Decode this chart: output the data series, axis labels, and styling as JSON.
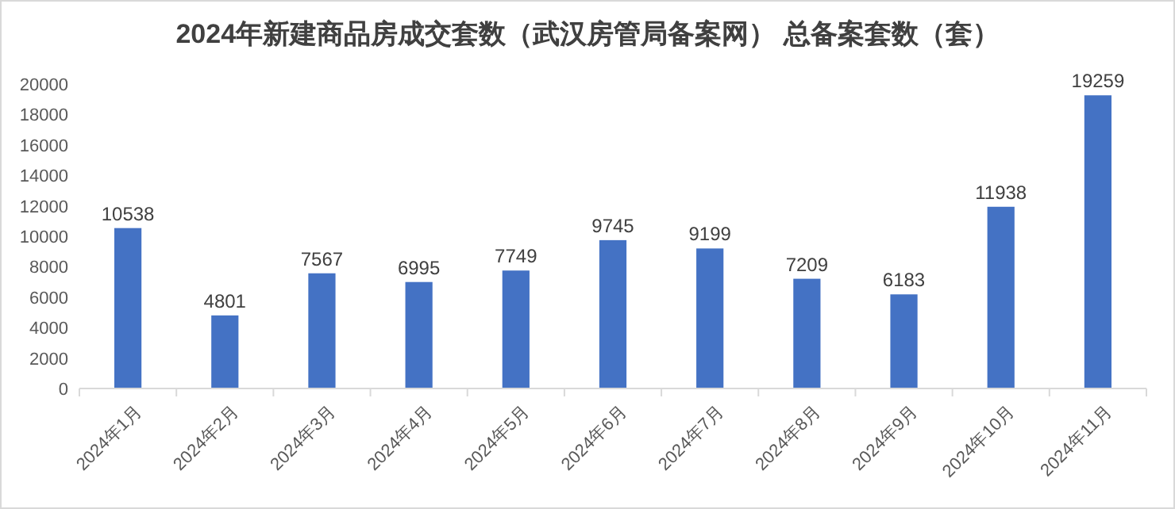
{
  "chart_data": {
    "type": "bar",
    "title": "2024年新建商品房成交套数（武汉房管局备案网） 总备案套数（套）",
    "categories": [
      "2024年1月",
      "2024年2月",
      "2024年3月",
      "2024年4月",
      "2024年5月",
      "2024年6月",
      "2024年7月",
      "2024年8月",
      "2024年9月",
      "2024年10月",
      "2024年11月"
    ],
    "values": [
      10538,
      4801,
      7567,
      6995,
      7749,
      9745,
      9199,
      7209,
      6183,
      11938,
      19259
    ],
    "color": "#4472c4",
    "ylim": [
      0,
      20000
    ],
    "yticks": [
      0,
      2000,
      4000,
      6000,
      8000,
      10000,
      12000,
      14000,
      16000,
      18000,
      20000
    ],
    "data_labels": true,
    "grid": false
  }
}
